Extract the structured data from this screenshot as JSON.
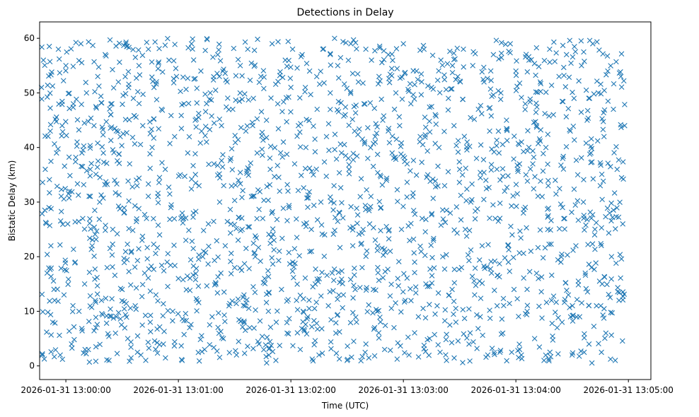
{
  "chart_data": {
    "type": "scatter",
    "title": "Detections in Delay",
    "xlabel": "Time (UTC)",
    "ylabel": "Bistatic Delay (km)",
    "marker": "x",
    "color": "#1f77b4",
    "grid": false,
    "xlim_seconds": [
      -14,
      312
    ],
    "ylim": [
      -2.5,
      63
    ],
    "x_ticks": [
      {
        "seconds": 0,
        "label": "2026-01-31 13:00:00"
      },
      {
        "seconds": 60,
        "label": "2026-01-31 13:01:00"
      },
      {
        "seconds": 120,
        "label": "2026-01-31 13:02:00"
      },
      {
        "seconds": 180,
        "label": "2026-01-31 13:03:00"
      },
      {
        "seconds": 240,
        "label": "2026-01-31 13:04:00"
      },
      {
        "seconds": 300,
        "label": "2026-01-31 13:05:00"
      }
    ],
    "y_ticks": [
      0,
      10,
      20,
      30,
      40,
      50,
      60
    ],
    "series": [
      {
        "name": "Detections",
        "x_range_seconds": [
          -13,
          298
        ],
        "y_range": [
          0.5,
          60
        ],
        "approx_count": 2000,
        "points": [
          [
            -13,
            51
          ],
          [
            -12,
            56
          ],
          [
            -11,
            36
          ],
          [
            -10,
            17
          ],
          [
            -9,
            29
          ],
          [
            -8,
            22
          ],
          [
            -7,
            8
          ],
          [
            -6,
            12
          ],
          [
            -5,
            39
          ],
          [
            -4,
            58
          ],
          [
            -3,
            2
          ],
          [
            -2,
            44
          ],
          [
            -1,
            13
          ],
          [
            0,
            55
          ],
          [
            1,
            26
          ],
          [
            2,
            32
          ],
          [
            3,
            4
          ],
          [
            4,
            48
          ],
          [
            5,
            19
          ],
          [
            6,
            41
          ],
          [
            7,
            10
          ],
          [
            8,
            59
          ],
          [
            9,
            27
          ],
          [
            10,
            15
          ],
          [
            11,
            50
          ],
          [
            12,
            3
          ],
          [
            13,
            36
          ],
          [
            14,
            22
          ],
          [
            15,
            44
          ],
          [
            16,
            7
          ],
          [
            17,
            53
          ],
          [
            18,
            30
          ],
          [
            19,
            12
          ],
          [
            20,
            39
          ],
          [
            21,
            57
          ],
          [
            22,
            18
          ],
          [
            23,
            1
          ],
          [
            24,
            46
          ],
          [
            25,
            25
          ],
          [
            26,
            34
          ],
          [
            27,
            9
          ],
          [
            28,
            52
          ],
          [
            29,
            42
          ],
          [
            30,
            14
          ],
          [
            31,
            28
          ],
          [
            32,
            59
          ],
          [
            33,
            5
          ],
          [
            34,
            37
          ],
          [
            35,
            21
          ],
          [
            36,
            49
          ],
          [
            37,
            11
          ],
          [
            38,
            33
          ],
          [
            39,
            55
          ],
          [
            40,
            2
          ],
          [
            41,
            44
          ],
          [
            42,
            17
          ],
          [
            43,
            27
          ],
          [
            44,
            58
          ],
          [
            45,
            8
          ],
          [
            46,
            40
          ],
          [
            47,
            51
          ],
          [
            48,
            13
          ],
          [
            49,
            31
          ],
          [
            50,
            24
          ],
          [
            51,
            47
          ],
          [
            52,
            4
          ],
          [
            53,
            36
          ],
          [
            54,
            19
          ],
          [
            55,
            56
          ],
          [
            56,
            29
          ],
          [
            57,
            10
          ],
          [
            58,
            42
          ],
          [
            59,
            53
          ],
          [
            60,
            16
          ],
          [
            61,
            35
          ],
          [
            62,
            1
          ],
          [
            63,
            48
          ],
          [
            64,
            23
          ],
          [
            65,
            39
          ],
          [
            66,
            7
          ],
          [
            67,
            59
          ],
          [
            68,
            28
          ],
          [
            69,
            45
          ],
          [
            70,
            12
          ],
          [
            71,
            33
          ],
          [
            72,
            54
          ],
          [
            73,
            20
          ],
          [
            74,
            3
          ],
          [
            75,
            41
          ],
          [
            76,
            26
          ],
          [
            77,
            50
          ],
          [
            78,
            9
          ],
          [
            79,
            37
          ],
          [
            80,
            15
          ],
          [
            81,
            57
          ],
          [
            82,
            30
          ],
          [
            83,
            44
          ],
          [
            84,
            5
          ],
          [
            85,
            22
          ],
          [
            86,
            52
          ],
          [
            87,
            11
          ],
          [
            88,
            38
          ],
          [
            89,
            47
          ],
          [
            90,
            18
          ],
          [
            91,
            2
          ],
          [
            92,
            34
          ],
          [
            93,
            55
          ],
          [
            94,
            25
          ],
          [
            95,
            13
          ],
          [
            96,
            43
          ],
          [
            97,
            58
          ],
          [
            98,
            7
          ],
          [
            99,
            31
          ],
          [
            100,
            49
          ],
          [
            101,
            20
          ],
          [
            102,
            39
          ],
          [
            103,
            4
          ],
          [
            104,
            53
          ],
          [
            105,
            27
          ],
          [
            106,
            16
          ],
          [
            107,
            45
          ],
          [
            108,
            10
          ],
          [
            109,
            36
          ],
          [
            110,
            59
          ],
          [
            111,
            23
          ],
          [
            112,
            1
          ],
          [
            113,
            48
          ],
          [
            114,
            32
          ],
          [
            115,
            14
          ],
          [
            116,
            41
          ],
          [
            117,
            56
          ],
          [
            118,
            6
          ],
          [
            119,
            29
          ],
          [
            120,
            51
          ],
          [
            121,
            19
          ],
          [
            122,
            37
          ],
          [
            123,
            12
          ],
          [
            124,
            44
          ],
          [
            125,
            3
          ],
          [
            126,
            57
          ],
          [
            127,
            26
          ],
          [
            128,
            40
          ],
          [
            129,
            9
          ],
          [
            130,
            54
          ],
          [
            131,
            21
          ],
          [
            132,
            35
          ],
          [
            133,
            15
          ],
          [
            134,
            47
          ],
          [
            135,
            2
          ],
          [
            136,
            30
          ],
          [
            137,
            58
          ],
          [
            138,
            24
          ],
          [
            139,
            42
          ],
          [
            140,
            11
          ],
          [
            141,
            50
          ],
          [
            142,
            17
          ],
          [
            143,
            33
          ],
          [
            144,
            6
          ],
          [
            145,
            55
          ],
          [
            146,
            28
          ],
          [
            147,
            39
          ],
          [
            148,
            13
          ],
          [
            149,
            46
          ],
          [
            150,
            1
          ],
          [
            151,
            36
          ],
          [
            152,
            59
          ],
          [
            153,
            22
          ],
          [
            154,
            43
          ],
          [
            155,
            8
          ],
          [
            156,
            52
          ],
          [
            157,
            31
          ],
          [
            158,
            18
          ],
          [
            159,
            48
          ],
          [
            160,
            4
          ],
          [
            161,
            38
          ],
          [
            162,
            26
          ],
          [
            163,
            56
          ],
          [
            164,
            14
          ],
          [
            165,
            41
          ],
          [
            166,
            10
          ],
          [
            167,
            53
          ],
          [
            168,
            29
          ],
          [
            169,
            45
          ],
          [
            170,
            3
          ],
          [
            171,
            34
          ],
          [
            172,
            57
          ],
          [
            173,
            21
          ],
          [
            174,
            39
          ],
          [
            175,
            7
          ],
          [
            176,
            50
          ],
          [
            177,
            16
          ],
          [
            178,
            44
          ],
          [
            179,
            25
          ],
          [
            180,
            59
          ],
          [
            181,
            12
          ],
          [
            182,
            37
          ],
          [
            183,
            2
          ],
          [
            184,
            48
          ],
          [
            185,
            31
          ],
          [
            186,
            19
          ],
          [
            187,
            54
          ],
          [
            188,
            9
          ],
          [
            189,
            42
          ],
          [
            190,
            27
          ],
          [
            191,
            58
          ],
          [
            192,
            15
          ],
          [
            193,
            35
          ],
          [
            194,
            5
          ],
          [
            195,
            51
          ],
          [
            196,
            23
          ],
          [
            197,
            46
          ],
          [
            198,
            11
          ],
          [
            199,
            40
          ],
          [
            200,
            56
          ],
          [
            201,
            20
          ],
          [
            202,
            33
          ],
          [
            203,
            1
          ],
          [
            204,
            49
          ],
          [
            205,
            28
          ],
          [
            206,
            14
          ],
          [
            207,
            44
          ],
          [
            208,
            8
          ],
          [
            209,
            53
          ],
          [
            210,
            36
          ],
          [
            211,
            18
          ],
          [
            212,
            58
          ],
          [
            213,
            25
          ],
          [
            214,
            41
          ],
          [
            215,
            4
          ],
          [
            216,
            30
          ],
          [
            217,
            55
          ],
          [
            218,
            13
          ],
          [
            219,
            38
          ],
          [
            220,
            47
          ],
          [
            221,
            9
          ],
          [
            222,
            22
          ],
          [
            223,
            52
          ],
          [
            224,
            34
          ],
          [
            225,
            2
          ],
          [
            226,
            43
          ],
          [
            227,
            17
          ],
          [
            228,
            57
          ],
          [
            229,
            27
          ],
          [
            230,
            11
          ],
          [
            231,
            39
          ],
          [
            232,
            50
          ],
          [
            233,
            6
          ],
          [
            234,
            32
          ],
          [
            235,
            45
          ],
          [
            236,
            19
          ],
          [
            237,
            59
          ],
          [
            238,
            24
          ],
          [
            239,
            14
          ],
          [
            240,
            54
          ],
          [
            241,
            36
          ],
          [
            242,
            3
          ],
          [
            243,
            41
          ],
          [
            244,
            28
          ],
          [
            245,
            48
          ],
          [
            246,
            10
          ],
          [
            247,
            56
          ],
          [
            248,
            21
          ],
          [
            249,
            37
          ],
          [
            250,
            5
          ],
          [
            251,
            44
          ],
          [
            252,
            16
          ],
          [
            253,
            52
          ],
          [
            254,
            31
          ],
          [
            255,
            1
          ],
          [
            256,
            40
          ],
          [
            257,
            25
          ],
          [
            258,
            58
          ],
          [
            259,
            12
          ],
          [
            260,
            46
          ],
          [
            261,
            34
          ],
          [
            262,
            7
          ],
          [
            263,
            53
          ],
          [
            264,
            19
          ],
          [
            265,
            38
          ],
          [
            266,
            27
          ],
          [
            267,
            57
          ],
          [
            268,
            13
          ],
          [
            269,
            43
          ],
          [
            270,
            2
          ],
          [
            271,
            49
          ],
          [
            272,
            22
          ],
          [
            273,
            35
          ],
          [
            274,
            9
          ],
          [
            275,
            55
          ],
          [
            276,
            30
          ],
          [
            277,
            17
          ],
          [
            278,
            45
          ],
          [
            279,
            4
          ],
          [
            280,
            39
          ],
          [
            281,
            59
          ],
          [
            282,
            24
          ],
          [
            283,
            11
          ],
          [
            284,
            50
          ],
          [
            285,
            33
          ],
          [
            286,
            15
          ],
          [
            287,
            42
          ],
          [
            288,
            6
          ],
          [
            289,
            54
          ],
          [
            290,
            28
          ],
          [
            291,
            20
          ],
          [
            292,
            47
          ],
          [
            293,
            1
          ],
          [
            294,
            36
          ],
          [
            295,
            12
          ],
          [
            296,
            53
          ],
          [
            297,
            26
          ],
          [
            298,
            44
          ]
        ]
      }
    ]
  }
}
